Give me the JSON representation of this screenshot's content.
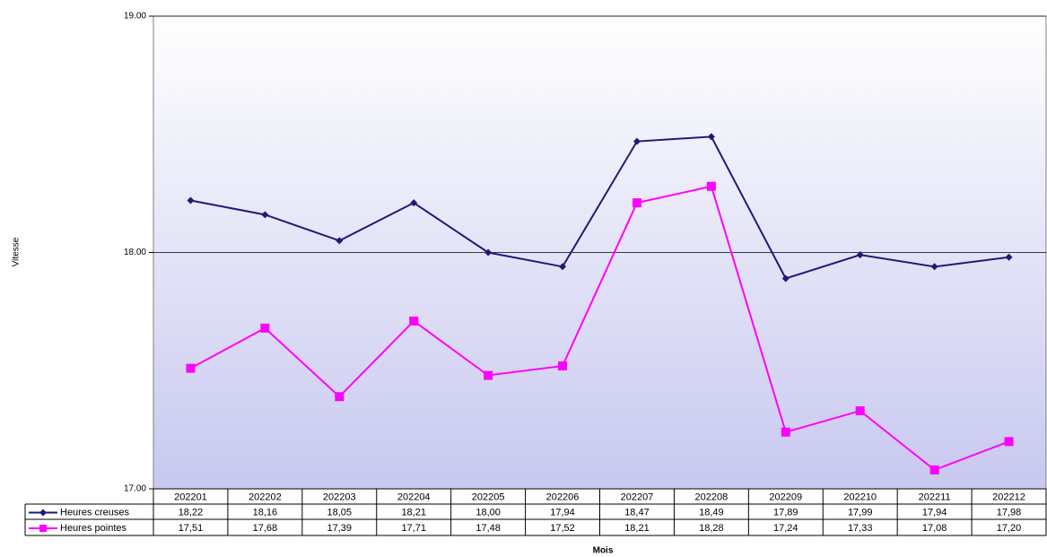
{
  "chart_data": {
    "type": "line",
    "x_label": "Mois",
    "y_label": "Vitesse",
    "categories": [
      "202201",
      "202202",
      "202203",
      "202204",
      "202205",
      "202206",
      "202207",
      "202208",
      "202209",
      "202210",
      "202211",
      "202212"
    ],
    "series": [
      {
        "name": "Heures creuses",
        "color": "#1c1c78",
        "marker": "diamond",
        "values": [
          18.22,
          18.16,
          18.05,
          18.21,
          18.0,
          17.94,
          18.47,
          18.49,
          17.89,
          17.99,
          17.94,
          17.98
        ],
        "value_labels": [
          "18,22",
          "18,16",
          "18,05",
          "18,21",
          "18,00",
          "17,94",
          "18,47",
          "18,49",
          "17,89",
          "17,99",
          "17,94",
          "17,98"
        ]
      },
      {
        "name": "Heures pointes",
        "color": "#ff00ff",
        "marker": "square",
        "values": [
          17.51,
          17.68,
          17.39,
          17.71,
          17.48,
          17.52,
          18.21,
          18.28,
          17.24,
          17.33,
          17.08,
          17.2
        ],
        "value_labels": [
          "17,51",
          "17,68",
          "17,39",
          "17,71",
          "17,48",
          "17,52",
          "18,21",
          "18,28",
          "17,24",
          "17,33",
          "17,08",
          "17,20"
        ]
      }
    ],
    "ylim": [
      17,
      19
    ],
    "yticks": [
      {
        "value": 17,
        "label": "17.00"
      },
      {
        "value": 18,
        "label": "18.00"
      },
      {
        "value": 19,
        "label": "19.00"
      }
    ],
    "grid": true
  }
}
